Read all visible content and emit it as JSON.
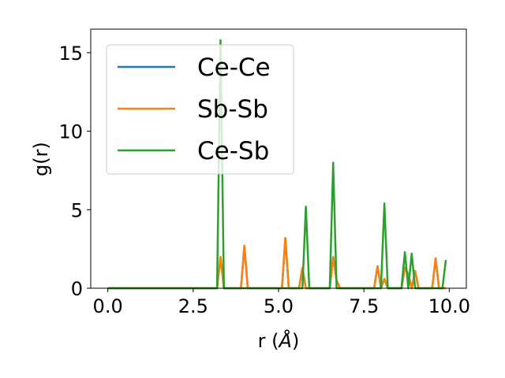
{
  "chart_data": {
    "type": "line",
    "xlabel": "r (",
    "xlabel_unit": "Å",
    "xlabel_close": ")",
    "ylabel": "g(r)",
    "xlim": [
      -0.5,
      10.5
    ],
    "ylim": [
      0,
      16.5
    ],
    "xticks": [
      0.0,
      2.5,
      5.0,
      7.5,
      10.0
    ],
    "xtick_labels": [
      "0.0",
      "2.5",
      "5.0",
      "7.5",
      "10.0"
    ],
    "yticks": [
      0,
      5,
      10,
      15
    ],
    "ytick_labels": [
      "0",
      "5",
      "10",
      "15"
    ],
    "grid": false,
    "legend_position": "top-left",
    "series": [
      {
        "name": "Ce-Ce",
        "color": "#1f77b4",
        "x": [
          0.0,
          3.2,
          3.3,
          3.4,
          3.9,
          4.0,
          4.1,
          5.1,
          5.2,
          5.3,
          5.6,
          5.7,
          5.8,
          6.5,
          6.6,
          6.7,
          6.8,
          7.8,
          7.9,
          8.0,
          8.1,
          8.2,
          8.6,
          8.7,
          8.8,
          8.9,
          9.0,
          9.1,
          9.5,
          9.6,
          9.7,
          9.9
        ],
        "y": [
          0.0,
          0.0,
          2.0,
          0.0,
          0.0,
          2.7,
          0.0,
          0.0,
          3.2,
          0.0,
          0.0,
          1.3,
          0.0,
          0.0,
          2.0,
          0.5,
          0.0,
          0.0,
          1.4,
          0.0,
          0.6,
          0.0,
          0.0,
          1.3,
          0.9,
          0.0,
          1.1,
          0.0,
          0.0,
          1.9,
          0.0,
          0.0
        ]
      },
      {
        "name": "Sb-Sb",
        "color": "#ff7f0e",
        "x": [
          0.0,
          3.2,
          3.3,
          3.4,
          3.9,
          4.0,
          4.1,
          5.1,
          5.2,
          5.3,
          5.6,
          5.7,
          5.8,
          6.5,
          6.6,
          6.7,
          6.8,
          7.8,
          7.9,
          8.0,
          8.1,
          8.2,
          8.6,
          8.7,
          8.8,
          8.9,
          9.0,
          9.1,
          9.5,
          9.6,
          9.7,
          9.9
        ],
        "y": [
          0.0,
          0.0,
          2.0,
          0.0,
          0.0,
          2.7,
          0.0,
          0.0,
          3.2,
          0.0,
          0.0,
          1.3,
          0.0,
          0.0,
          2.0,
          0.5,
          0.0,
          0.0,
          1.4,
          0.0,
          0.6,
          0.0,
          0.0,
          1.3,
          0.9,
          0.0,
          1.1,
          0.0,
          0.0,
          1.9,
          0.0,
          0.0
        ]
      },
      {
        "name": "Ce-Sb",
        "color": "#2ca02c",
        "x": [
          0.0,
          3.2,
          3.3,
          3.4,
          5.7,
          5.8,
          5.9,
          6.5,
          6.6,
          6.7,
          8.0,
          8.1,
          8.2,
          8.6,
          8.7,
          8.8,
          8.9,
          9.0,
          9.8,
          9.9
        ],
        "y": [
          0.0,
          0.0,
          15.8,
          0.0,
          0.0,
          5.2,
          0.0,
          0.0,
          8.0,
          0.0,
          0.0,
          5.4,
          0.0,
          0.0,
          2.3,
          0.0,
          2.2,
          0.0,
          0.0,
          1.8
        ]
      }
    ]
  }
}
